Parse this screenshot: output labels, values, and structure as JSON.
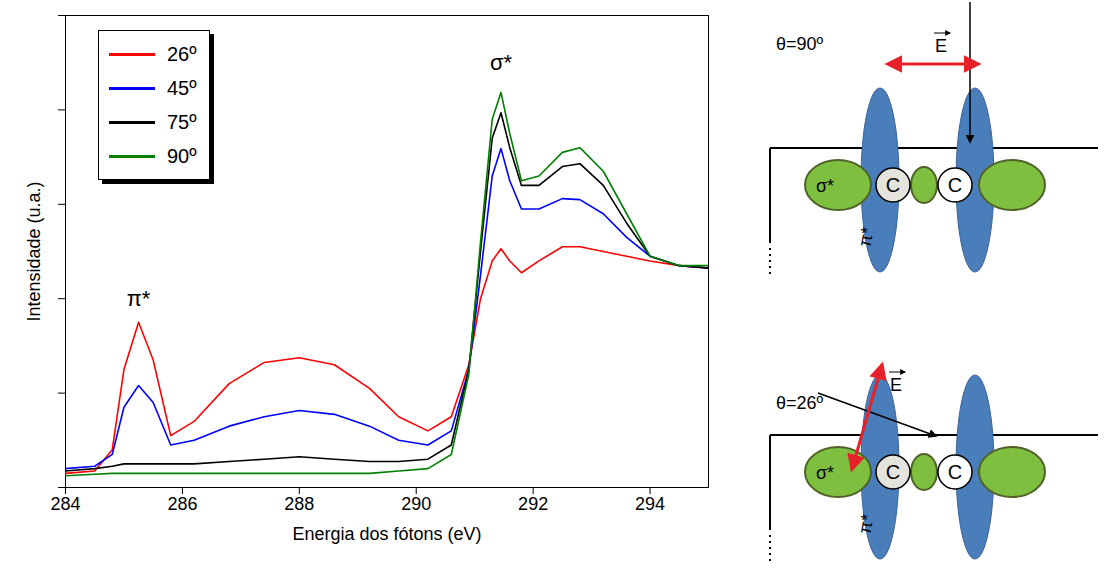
{
  "chart_data": {
    "type": "line",
    "x_label": "Energia dos fótons (eV)",
    "y_label": "Intensidade (u.a.)",
    "xlim": [
      284,
      295
    ],
    "xticks": [
      284,
      286,
      288,
      290,
      292,
      294
    ],
    "ylim": [
      0,
      1
    ],
    "yticks": [
      0,
      0.2,
      0.4,
      0.6,
      0.8,
      1
    ],
    "tick_labels": "x",
    "legend": "top-left",
    "x": [
      284,
      284.5,
      284.8,
      285.0,
      285.25,
      285.5,
      285.8,
      286.2,
      286.8,
      287.4,
      288.0,
      288.6,
      289.2,
      289.7,
      290.2,
      290.6,
      290.9,
      291.1,
      291.3,
      291.45,
      291.6,
      291.8,
      292.1,
      292.5,
      292.8,
      293.2,
      293.6,
      294.0,
      294.5,
      295.0
    ],
    "series": [
      {
        "name": "26º",
        "color": "#ff0000",
        "values": [
          0.03,
          0.035,
          0.08,
          0.25,
          0.35,
          0.27,
          0.11,
          0.14,
          0.22,
          0.265,
          0.275,
          0.26,
          0.21,
          0.15,
          0.12,
          0.15,
          0.26,
          0.4,
          0.48,
          0.506,
          0.48,
          0.455,
          0.48,
          0.51,
          0.51,
          0.5,
          0.49,
          0.48,
          0.47,
          0.465
        ]
      },
      {
        "name": "45º",
        "color": "#0000ff",
        "values": [
          0.04,
          0.045,
          0.07,
          0.17,
          0.216,
          0.18,
          0.09,
          0.1,
          0.13,
          0.15,
          0.163,
          0.155,
          0.13,
          0.1,
          0.09,
          0.12,
          0.25,
          0.45,
          0.66,
          0.718,
          0.65,
          0.59,
          0.59,
          0.612,
          0.61,
          0.58,
          0.53,
          0.49,
          0.47,
          0.465
        ]
      },
      {
        "name": "75º",
        "color": "#000000",
        "values": [
          0.035,
          0.04,
          0.045,
          0.05,
          0.05,
          0.05,
          0.05,
          0.05,
          0.055,
          0.06,
          0.065,
          0.06,
          0.055,
          0.055,
          0.06,
          0.09,
          0.25,
          0.5,
          0.74,
          0.794,
          0.72,
          0.64,
          0.64,
          0.68,
          0.686,
          0.64,
          0.56,
          0.49,
          0.47,
          0.465
        ]
      },
      {
        "name": "90º",
        "color": "#008000",
        "values": [
          0.025,
          0.028,
          0.03,
          0.03,
          0.03,
          0.03,
          0.03,
          0.03,
          0.03,
          0.03,
          0.03,
          0.03,
          0.03,
          0.035,
          0.04,
          0.07,
          0.24,
          0.52,
          0.78,
          0.837,
          0.75,
          0.65,
          0.66,
          0.71,
          0.72,
          0.67,
          0.58,
          0.49,
          0.47,
          0.47
        ]
      }
    ],
    "annotations": [
      {
        "text": "π*",
        "x": 285.25,
        "y": 0.4
      },
      {
        "text": "σ*",
        "x": 291.45,
        "y": 0.9
      }
    ]
  },
  "diagrams": [
    {
      "title": "θ=90º",
      "field": "E",
      "atoms": [
        "C",
        "C"
      ],
      "sigma": "σ*",
      "pi": "π*"
    },
    {
      "title": "θ=26º",
      "field": "E",
      "atoms": [
        "C",
        "C"
      ],
      "sigma": "σ*",
      "pi": "π*"
    }
  ]
}
